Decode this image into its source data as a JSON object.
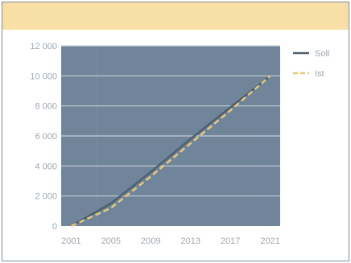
{
  "colors": {
    "header": "#f7dfa6",
    "plot_bg": "#70859a",
    "grid": "#c4ccd6",
    "soll": "#4d5f72",
    "ist": "#e6c77c",
    "tick_text": "#9ea7b0"
  },
  "chart_data": {
    "type": "line",
    "x": [
      2001,
      2005,
      2009,
      2013,
      2017,
      2021
    ],
    "xlim": [
      2000,
      2022
    ],
    "ylim": [
      0,
      12000
    ],
    "x_ticks": [
      "2001",
      "2005",
      "2009",
      "2013",
      "2017",
      "2021"
    ],
    "y_ticks": [
      "0",
      "2 000",
      "4 000",
      "6 000",
      "8 000",
      "10 000",
      "12 000"
    ],
    "y_tick_values": [
      0,
      2000,
      4000,
      6000,
      8000,
      10000,
      12000
    ],
    "x_tick_values": [
      2001,
      2005,
      2009,
      2013,
      2017,
      2021
    ],
    "grid": true,
    "legend_position": "right",
    "series": [
      {
        "name": "Soll",
        "style": "solid",
        "points": [
          [
            2001,
            0
          ],
          [
            2005,
            1500
          ],
          [
            2009,
            3600
          ],
          [
            2013,
            5800
          ],
          [
            2017,
            7900
          ],
          [
            2021,
            10000
          ]
        ]
      },
      {
        "name": "Ist",
        "style": "dashed",
        "points": [
          [
            2001,
            0
          ],
          [
            2005,
            1200
          ],
          [
            2009,
            3300
          ],
          [
            2013,
            5500
          ],
          [
            2017,
            7700
          ],
          [
            2021,
            10000
          ]
        ]
      }
    ]
  }
}
